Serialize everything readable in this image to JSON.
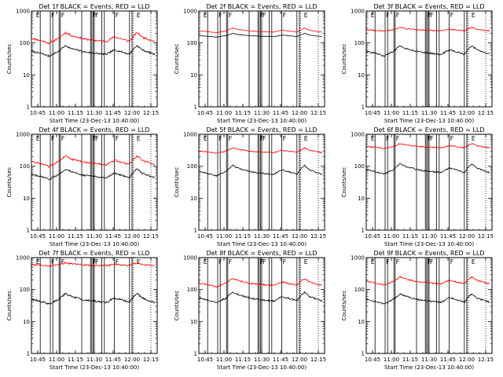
{
  "chart_data": {
    "type": "line",
    "figure": "3x3 grid of detector light curves",
    "start_time": "Start Time (23-Dec-13 10:40:00)",
    "ylabel": "Counts/sec",
    "y_scale": "log",
    "ylim": [
      1,
      1000
    ],
    "y_ticks": [
      1,
      10,
      100,
      1000
    ],
    "xlim": [
      "10:40",
      "12:20"
    ],
    "x_ticks": [
      "10:45",
      "11:00",
      "11:15",
      "11:30",
      "11:45",
      "12:00",
      "12:15"
    ],
    "solid_vlines": [
      "10:47",
      "10:55",
      "10:57",
      "11:02",
      "11:03",
      "11:20",
      "11:27",
      "11:28",
      "11:29",
      "11:30",
      "11:36",
      "11:38",
      "11:46",
      "11:58",
      "12:00"
    ],
    "dotted_vlines": [
      "12:00",
      "12:01",
      "12:15"
    ],
    "markers": [
      {
        "label": "E",
        "time": "10:43"
      },
      {
        "label": "F",
        "time": "10:55"
      },
      {
        "label": "F",
        "time": "11:03"
      },
      {
        "label": "F",
        "time": "11:28"
      },
      {
        "label": "F",
        "time": "11:30"
      },
      {
        "label": "F",
        "time": "11:46"
      },
      {
        "label": "E",
        "time": "12:03"
      }
    ],
    "series_legend": {
      "black": "Events",
      "red": "LLD"
    },
    "panels": [
      {
        "title": "Det 1f BLACK = Events, RED = LLD",
        "black_base": 55,
        "red_base": 140,
        "black_shape": 1,
        "red_shape": 1,
        "noise_black": 0.06,
        "noise_red": 0.07
      },
      {
        "title": "Det 2f BLACK = Events, RED = LLD",
        "black_base": 170,
        "red_base": 240,
        "black_shape": 0.35,
        "red_shape": 0.45,
        "noise_black": 0.01,
        "noise_red": 0.01
      },
      {
        "title": "Det 3f BLACK = Events, RED = LLD",
        "black_base": 55,
        "red_base": 260,
        "black_shape": 1,
        "red_shape": 0.35,
        "noise_black": 0.06,
        "noise_red": 0.04
      },
      {
        "title": "Det 4f BLACK = Events, RED = LLD",
        "black_base": 55,
        "red_base": 140,
        "black_shape": 1,
        "red_shape": 1,
        "noise_black": 0.06,
        "noise_red": 0.07
      },
      {
        "title": "Det 5f BLACK = Events, RED = LLD",
        "black_base": 70,
        "red_base": 300,
        "black_shape": 1,
        "red_shape": 0.5,
        "noise_black": 0.05,
        "noise_red": 0.04
      },
      {
        "title": "Det 6f BLACK = Events, RED = LLD",
        "black_base": 80,
        "red_base": 420,
        "black_shape": 1,
        "red_shape": 0.45,
        "noise_black": 0.05,
        "noise_red": 0.04
      },
      {
        "title": "Det 7f BLACK = Events, RED = LLD",
        "black_base": 50,
        "red_base": 600,
        "black_shape": 1,
        "red_shape": 0.3,
        "noise_black": 0.07,
        "noise_red": 0.06
      },
      {
        "title": "Det 8f BLACK = Events, RED = LLD",
        "black_base": 55,
        "red_base": 160,
        "black_shape": 1,
        "red_shape": 0.8,
        "noise_black": 0.06,
        "noise_red": 0.05
      },
      {
        "title": "Det 9f BLACK = Events, RED = LLD",
        "black_base": 50,
        "red_base": 180,
        "black_shape": 1,
        "red_shape": 0.8,
        "noise_black": 0.06,
        "noise_red": 0.05
      }
    ],
    "colors": {
      "black": "#000000",
      "red": "#ff0000",
      "background": "#ffffff"
    }
  }
}
